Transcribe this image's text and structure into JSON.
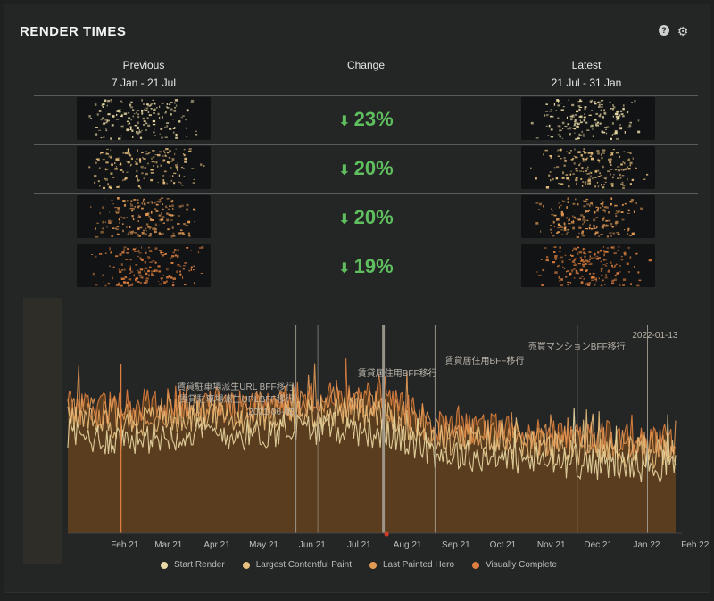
{
  "header": {
    "title": "RENDER TIMES"
  },
  "icons": {
    "help": "help-icon",
    "settings": "gear-icon"
  },
  "columns": {
    "previous": {
      "label": "Previous",
      "range": "7 Jan - 21 Jul"
    },
    "change": {
      "label": "Change"
    },
    "latest": {
      "label": "Latest",
      "range": "21 Jul - 31 Jan"
    }
  },
  "metrics": [
    {
      "metric": "Start Render",
      "change": "23%",
      "direction": "down",
      "color": "#e9d9a4"
    },
    {
      "metric": "Largest Contentful Paint",
      "change": "20%",
      "direction": "down",
      "color": "#e8c07e"
    },
    {
      "metric": "Last Painted Hero",
      "change": "20%",
      "direction": "down",
      "color": "#e39a55"
    },
    {
      "metric": "Visually Complete",
      "change": "19%",
      "direction": "down",
      "color": "#de7f3f"
    }
  ],
  "chart_data": {
    "type": "area",
    "x_tick_labels": [
      "Feb 21",
      "Mar 21",
      "Apr 21",
      "May 21",
      "Jun 21",
      "Jul 21",
      "Aug 21",
      "Sep 21",
      "Oct 21",
      "Nov 21",
      "Dec 21",
      "Jan 22",
      "Feb 22"
    ],
    "series": [
      {
        "name": "Start Render",
        "color": "#e9d9a4",
        "x": [
          "2021-01-07",
          "2021-02-01",
          "2021-03-01",
          "2021-04-01",
          "2021-05-01",
          "2021-06-01",
          "2021-07-01",
          "2021-08-01",
          "2021-09-01",
          "2021-10-01",
          "2021-11-01",
          "2021-12-01",
          "2022-01-01",
          "2022-01-31"
        ],
        "y": [
          42,
          40,
          41,
          43,
          42,
          44,
          45,
          42,
          34,
          33,
          31,
          30,
          29,
          28
        ]
      },
      {
        "name": "Largest Contentful Paint",
        "color": "#e8c07e",
        "x": [
          "2021-01-07",
          "2021-02-01",
          "2021-03-01",
          "2021-04-01",
          "2021-05-01",
          "2021-06-01",
          "2021-07-01",
          "2021-08-01",
          "2021-09-01",
          "2021-10-01",
          "2021-11-01",
          "2021-12-01",
          "2022-01-01",
          "2022-01-31"
        ],
        "y": [
          48,
          47,
          48,
          50,
          49,
          51,
          52,
          49,
          40,
          39,
          37,
          36,
          35,
          34
        ]
      },
      {
        "name": "Last Painted Hero",
        "color": "#e39a55",
        "x": [
          "2021-01-07",
          "2021-02-01",
          "2021-03-01",
          "2021-04-01",
          "2021-05-01",
          "2021-06-01",
          "2021-07-01",
          "2021-08-01",
          "2021-09-01",
          "2021-10-01",
          "2021-11-01",
          "2021-12-01",
          "2022-01-01",
          "2022-01-31"
        ],
        "y": [
          52,
          51,
          52,
          54,
          53,
          55,
          56,
          53,
          43,
          42,
          40,
          39,
          38,
          37
        ]
      },
      {
        "name": "Visually Complete",
        "color": "#de7f3f",
        "x": [
          "2021-01-07",
          "2021-02-01",
          "2021-03-01",
          "2021-04-01",
          "2021-05-01",
          "2021-06-01",
          "2021-07-01",
          "2021-08-01",
          "2021-09-01",
          "2021-10-01",
          "2021-11-01",
          "2021-12-01",
          "2022-01-01",
          "2022-01-31"
        ],
        "y": [
          55,
          54,
          55,
          57,
          56,
          58,
          59,
          56,
          46,
          45,
          43,
          42,
          41,
          40
        ]
      }
    ],
    "annotations": [
      {
        "date": "2021-06-02",
        "lines": [
          "賃貸駐車場派生URL BFF移行",
          "賃貸駐車場派生URLBFF移行",
          "2021-06-02"
        ]
      },
      {
        "date": "2021-07-28",
        "lines": [
          "賃貸居住用BFF移行"
        ]
      },
      {
        "date": "2021-08-30",
        "lines": [
          "賃貸居住用BFF移行"
        ]
      },
      {
        "date": "2021-11-29",
        "lines": [
          "売買マンションBFF移行"
        ]
      },
      {
        "date": "2022-01-13",
        "lines": [
          "2022-01-13"
        ]
      }
    ],
    "xlim": [
      "2021-01-07",
      "2022-02-04"
    ],
    "ylim": [
      0,
      100
    ],
    "grid": false,
    "legend": "bottom"
  }
}
